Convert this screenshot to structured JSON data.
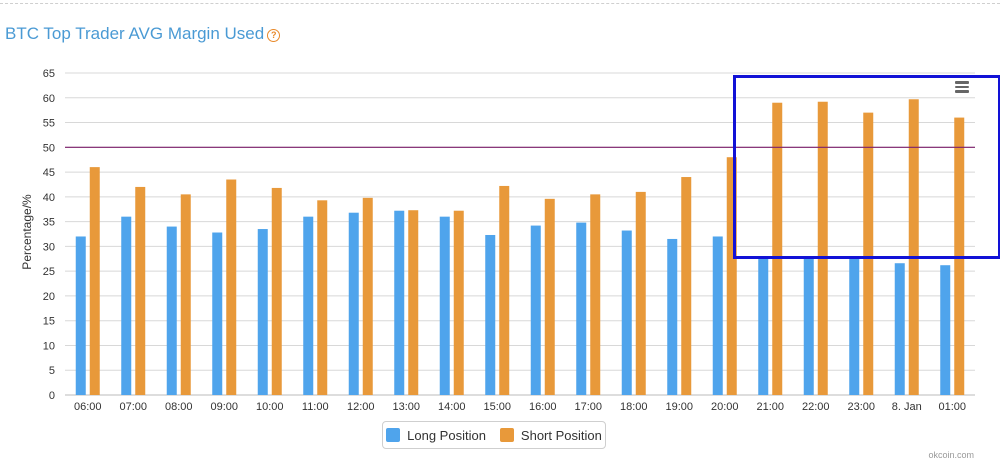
{
  "title": "BTC Top Trader AVG Margin Used",
  "help_icon": "help-circle-icon",
  "menu_icon": "hamburger-menu-icon",
  "credit": "okcoin.com",
  "colors": {
    "long": "#4fa4ec",
    "short": "#e8993a",
    "reference_line": "#7d1f6b",
    "highlight": "#1212d6",
    "title": "#4a9ad4"
  },
  "chart_data": {
    "type": "bar",
    "ylabel": "Percentage/%",
    "ylim": [
      0,
      65
    ],
    "yticks": [
      0,
      5,
      10,
      15,
      20,
      25,
      30,
      35,
      40,
      45,
      50,
      55,
      60,
      65
    ],
    "grid": true,
    "legend_position": "bottom-center",
    "reference_line": 50,
    "categories": [
      "06:00",
      "07:00",
      "08:00",
      "09:00",
      "10:00",
      "11:00",
      "12:00",
      "13:00",
      "14:00",
      "15:00",
      "16:00",
      "17:00",
      "18:00",
      "19:00",
      "20:00",
      "21:00",
      "22:00",
      "23:00",
      "8. Jan",
      "01:00"
    ],
    "series": [
      {
        "name": "Long Position",
        "values": [
          32,
          36,
          34,
          32.8,
          33.5,
          36,
          36.8,
          37.2,
          36,
          32.3,
          34.2,
          34.8,
          33.2,
          31.5,
          32,
          28,
          28,
          28,
          26.6,
          26.2
        ]
      },
      {
        "name": "Short Position",
        "values": [
          46,
          42,
          40.5,
          43.5,
          41.8,
          39.3,
          39.8,
          37.3,
          37.2,
          42.2,
          39.6,
          40.5,
          41,
          44,
          48,
          59,
          59.2,
          57,
          59.7,
          56
        ]
      }
    ]
  }
}
